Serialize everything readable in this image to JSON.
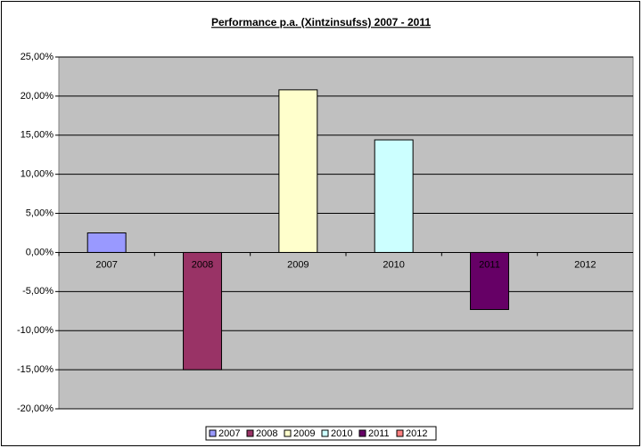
{
  "chart_data": {
    "type": "bar",
    "title": "Performance p.a. (Xintzinsufss) 2007 - 2011",
    "categories": [
      "2007",
      "2008",
      "2009",
      "2010",
      "2011",
      "2012"
    ],
    "values": [
      2.5,
      -15.0,
      20.8,
      14.4,
      -7.3,
      null
    ],
    "colors": [
      "#9999ff",
      "#993366",
      "#ffffcc",
      "#ccffff",
      "#660066",
      "#ff8080"
    ],
    "ylim": [
      -20,
      25
    ],
    "yticks": [
      {
        "value": -20,
        "label": "-20,00%"
      },
      {
        "value": -15,
        "label": "-15,00%"
      },
      {
        "value": -10,
        "label": "-10,00%"
      },
      {
        "value": -5,
        "label": "-5,00%"
      },
      {
        "value": 0,
        "label": "0,00%"
      },
      {
        "value": 5,
        "label": "5,00%"
      },
      {
        "value": 10,
        "label": "10,00%"
      },
      {
        "value": 15,
        "label": "15,00%"
      },
      {
        "value": 20,
        "label": "20,00%"
      },
      {
        "value": 25,
        "label": "25,00%"
      }
    ],
    "grid": true,
    "legend": "bottom"
  }
}
